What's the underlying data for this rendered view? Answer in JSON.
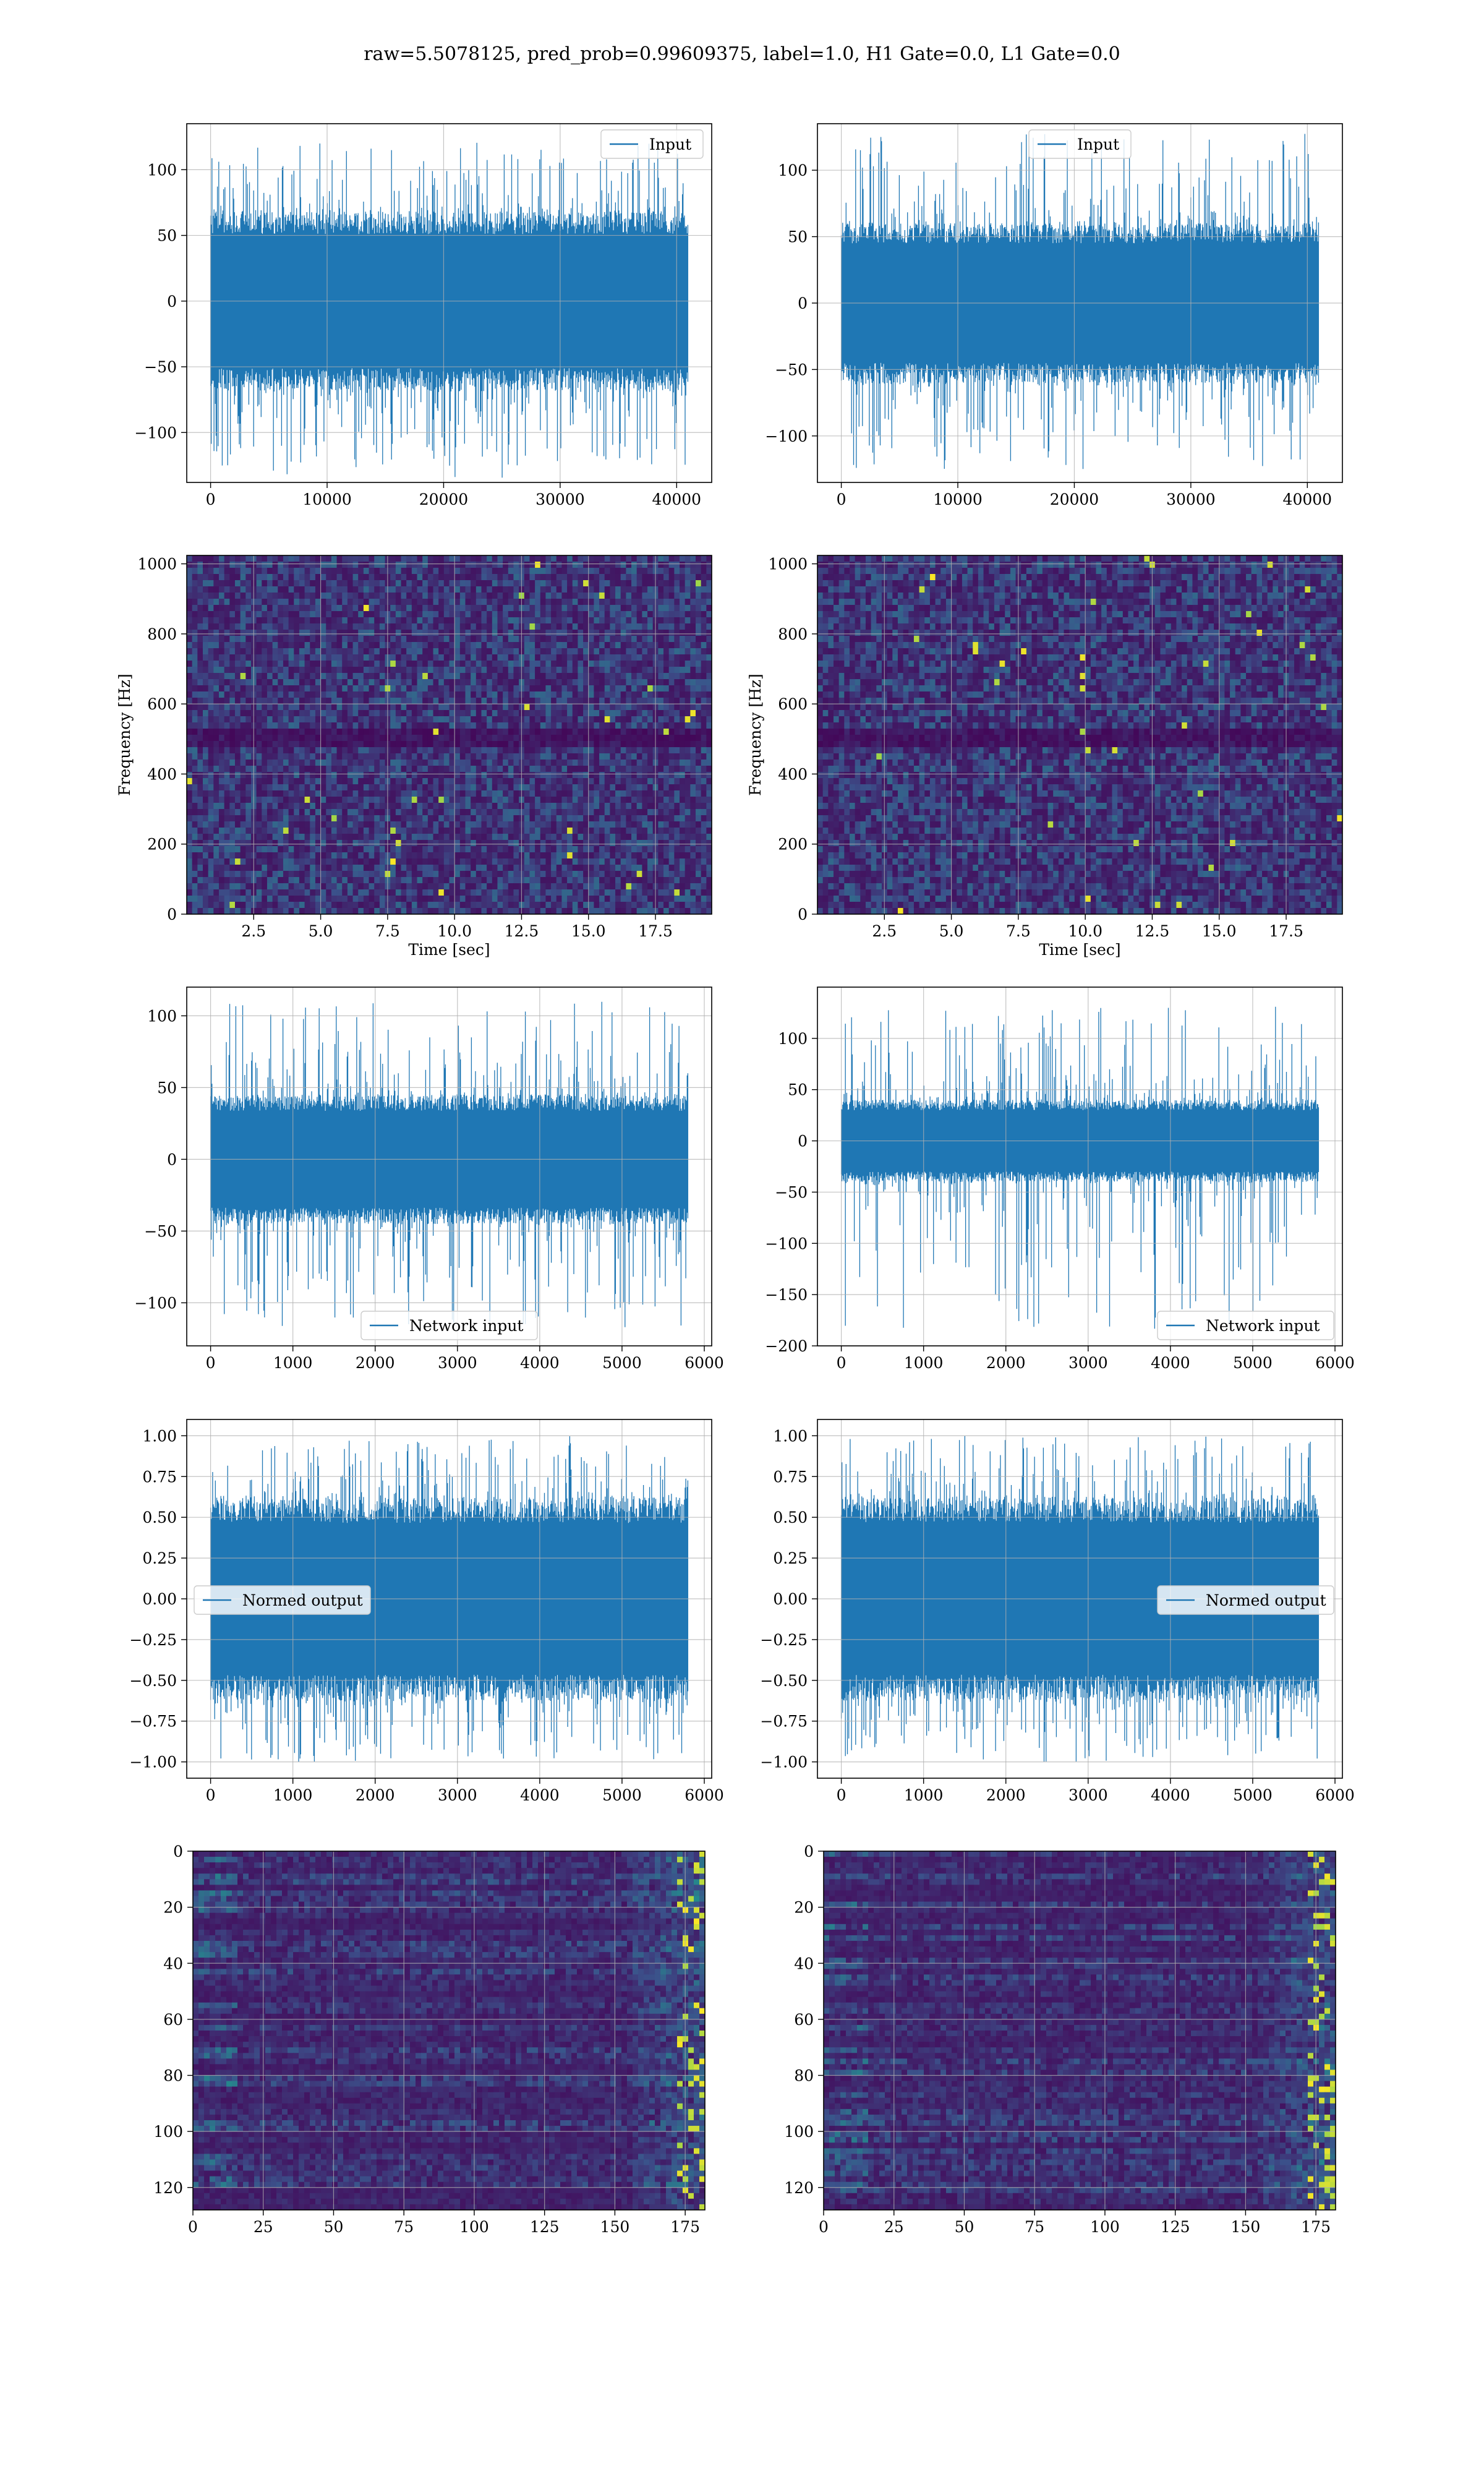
{
  "figure": {
    "suptitle": "raw=5.5078125, pred_prob=0.99609375, label=1.0, H1 Gate=0.0, L1 Gate=0.0"
  },
  "colors": {
    "series": "#1f77b4",
    "grid": "#b0b0b0",
    "viridis_low": "#440154",
    "viridis_mid": "#21918c",
    "viridis_high": "#fde725"
  },
  "chart_data": [
    {
      "id": "h1-input",
      "type": "line",
      "xlim": [
        -2048,
        43008
      ],
      "ylim": [
        -138,
        135
      ],
      "xticks": [
        0,
        10000,
        20000,
        30000,
        40000
      ],
      "yticks": [
        -100,
        -50,
        0,
        50,
        100
      ],
      "xticklabels": [
        "0",
        "10000",
        "20000",
        "30000",
        "40000"
      ],
      "yticklabels": [
        "−100",
        "−50",
        "0",
        "50",
        "100"
      ],
      "xlabel": "",
      "ylabel": "",
      "legend": "upper right",
      "series": [
        {
          "name": "Input",
          "x_range": [
            0,
            40960
          ],
          "band": [
            -68,
            68
          ],
          "peak_range": [
            -135,
            122
          ]
        }
      ]
    },
    {
      "id": "l1-input",
      "type": "line",
      "xlim": [
        -2048,
        43008
      ],
      "ylim": [
        -135,
        135
      ],
      "xticks": [
        0,
        10000,
        20000,
        30000,
        40000
      ],
      "yticks": [
        -100,
        -50,
        0,
        50,
        100
      ],
      "xticklabels": [
        "0",
        "10000",
        "20000",
        "30000",
        "40000"
      ],
      "yticklabels": [
        "−100",
        "−50",
        "0",
        "50",
        "100"
      ],
      "xlabel": "",
      "ylabel": "",
      "legend": "upper center",
      "series": [
        {
          "name": "Input",
          "x_range": [
            0,
            40960
          ],
          "band": [
            -60,
            60
          ],
          "peak_range": [
            -125,
            128
          ]
        }
      ]
    },
    {
      "id": "h1-spectrogram",
      "type": "heatmap",
      "xlim": [
        0,
        19.6
      ],
      "ylim": [
        0,
        1024
      ],
      "xticks": [
        2.5,
        5.0,
        7.5,
        10.0,
        12.5,
        15.0,
        17.5
      ],
      "yticks": [
        0,
        200,
        400,
        600,
        800,
        1000
      ],
      "xticklabels": [
        "2.5",
        "5.0",
        "7.5",
        "10.0",
        "12.5",
        "15.0",
        "17.5"
      ],
      "yticklabels": [
        "0",
        "200",
        "400",
        "600",
        "800",
        "1000"
      ],
      "xlabel": "Time [sec]",
      "ylabel": "Frequency [Hz]",
      "colormap": "viridis"
    },
    {
      "id": "l1-spectrogram",
      "type": "heatmap",
      "xlim": [
        0,
        19.6
      ],
      "ylim": [
        0,
        1024
      ],
      "xticks": [
        2.5,
        5.0,
        7.5,
        10.0,
        12.5,
        15.0,
        17.5
      ],
      "yticks": [
        0,
        200,
        400,
        600,
        800,
        1000
      ],
      "xticklabels": [
        "2.5",
        "5.0",
        "7.5",
        "10.0",
        "12.5",
        "15.0",
        "17.5"
      ],
      "yticklabels": [
        "0",
        "200",
        "400",
        "600",
        "800",
        "1000"
      ],
      "xlabel": "Time [sec]",
      "ylabel": "Frequency [Hz]",
      "colormap": "viridis"
    },
    {
      "id": "h1-network-input",
      "type": "line",
      "xlim": [
        -290,
        6090
      ],
      "ylim": [
        -130,
        120
      ],
      "xticks": [
        0,
        1000,
        2000,
        3000,
        4000,
        5000,
        6000
      ],
      "yticks": [
        -100,
        -50,
        0,
        50,
        100
      ],
      "xticklabels": [
        "0",
        "1000",
        "2000",
        "3000",
        "4000",
        "5000",
        "6000"
      ],
      "yticklabels": [
        "−100",
        "−50",
        "0",
        "50",
        "100"
      ],
      "xlabel": "",
      "ylabel": "",
      "legend": "lower center",
      "series": [
        {
          "name": "Network input",
          "x_range": [
            0,
            5800
          ],
          "band": [
            -45,
            45
          ],
          "peak_range": [
            -118,
            110
          ]
        }
      ]
    },
    {
      "id": "l1-network-input",
      "type": "line",
      "xlim": [
        -290,
        6090
      ],
      "ylim": [
        -200,
        150
      ],
      "xticks": [
        0,
        1000,
        2000,
        3000,
        4000,
        5000,
        6000
      ],
      "yticks": [
        -200,
        -150,
        -100,
        -50,
        0,
        50,
        100
      ],
      "xticklabels": [
        "0",
        "1000",
        "2000",
        "3000",
        "4000",
        "5000",
        "6000"
      ],
      "yticklabels": [
        "−200",
        "−150",
        "−100",
        "−50",
        "0",
        "50",
        "100"
      ],
      "xlabel": "",
      "ylabel": "",
      "legend": "lower right",
      "series": [
        {
          "name": "Network input",
          "x_range": [
            0,
            5800
          ],
          "band": [
            -40,
            40
          ],
          "peak_range": [
            -185,
            132
          ]
        }
      ]
    },
    {
      "id": "h1-normed-output",
      "type": "line",
      "xlim": [
        -290,
        6090
      ],
      "ylim": [
        -1.1,
        1.1
      ],
      "xticks": [
        0,
        1000,
        2000,
        3000,
        4000,
        5000,
        6000
      ],
      "yticks": [
        -1.0,
        -0.75,
        -0.5,
        -0.25,
        0.0,
        0.25,
        0.5,
        0.75,
        1.0
      ],
      "xticklabels": [
        "0",
        "1000",
        "2000",
        "3000",
        "4000",
        "5000",
        "6000"
      ],
      "yticklabels": [
        "−1.00",
        "−0.75",
        "−0.50",
        "−0.25",
        "0.00",
        "0.25",
        "0.50",
        "0.75",
        "1.00"
      ],
      "xlabel": "",
      "ylabel": "",
      "legend": "center left",
      "series": [
        {
          "name": "Normed output",
          "x_range": [
            0,
            5800
          ],
          "band": [
            -0.62,
            0.62
          ],
          "peak_range": [
            -1.0,
            1.0
          ]
        }
      ]
    },
    {
      "id": "l1-normed-output",
      "type": "line",
      "xlim": [
        -290,
        6090
      ],
      "ylim": [
        -1.1,
        1.1
      ],
      "xticks": [
        0,
        1000,
        2000,
        3000,
        4000,
        5000,
        6000
      ],
      "yticks": [
        -1.0,
        -0.75,
        -0.5,
        -0.25,
        0.0,
        0.25,
        0.5,
        0.75,
        1.0
      ],
      "xticklabels": [
        "0",
        "1000",
        "2000",
        "3000",
        "4000",
        "5000",
        "6000"
      ],
      "yticklabels": [
        "−1.00",
        "−0.75",
        "−0.50",
        "−0.25",
        "0.00",
        "0.25",
        "0.50",
        "0.75",
        "1.00"
      ],
      "xlabel": "",
      "ylabel": "",
      "legend": "center right",
      "series": [
        {
          "name": "Normed output",
          "x_range": [
            0,
            5800
          ],
          "band": [
            -0.62,
            0.62
          ],
          "peak_range": [
            -1.0,
            1.0
          ]
        }
      ]
    },
    {
      "id": "h1-feature-map",
      "type": "heatmap",
      "xlim": [
        0,
        182
      ],
      "ylim": [
        128,
        0
      ],
      "xticks": [
        0,
        25,
        50,
        75,
        100,
        125,
        150,
        175
      ],
      "yticks": [
        0,
        20,
        40,
        60,
        80,
        100,
        120
      ],
      "xticklabels": [
        "0",
        "25",
        "50",
        "75",
        "100",
        "125",
        "150",
        "175"
      ],
      "yticklabels": [
        "0",
        "20",
        "40",
        "60",
        "80",
        "100",
        "120"
      ],
      "xlabel": "",
      "ylabel": "",
      "colormap": "viridis",
      "y_inverted": true
    },
    {
      "id": "l1-feature-map",
      "type": "heatmap",
      "xlim": [
        0,
        182
      ],
      "ylim": [
        128,
        0
      ],
      "xticks": [
        0,
        25,
        50,
        75,
        100,
        125,
        150,
        175
      ],
      "yticks": [
        0,
        20,
        40,
        60,
        80,
        100,
        120
      ],
      "xticklabels": [
        "0",
        "25",
        "50",
        "75",
        "100",
        "125",
        "150",
        "175"
      ],
      "yticklabels": [
        "0",
        "20",
        "40",
        "60",
        "80",
        "100",
        "120"
      ],
      "xlabel": "",
      "ylabel": "",
      "colormap": "viridis",
      "y_inverted": true
    }
  ]
}
